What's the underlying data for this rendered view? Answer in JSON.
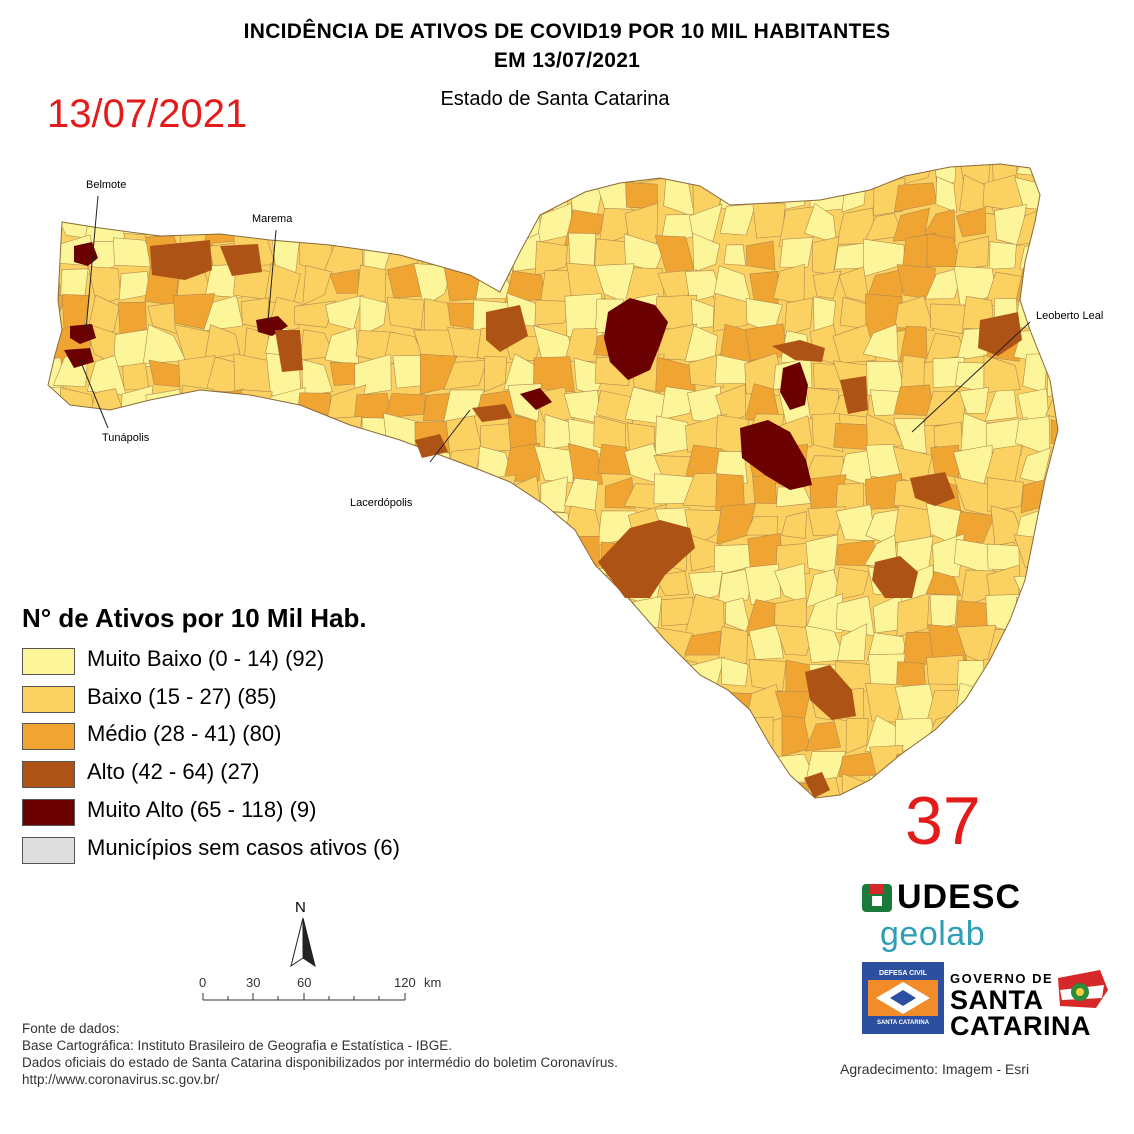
{
  "header": {
    "title_line1": "INCIDÊNCIA DE ATIVOS DE COVID19 POR 10 MIL HABITANTES",
    "title_line2": "EM 13/07/2021",
    "subtitle": "Estado de Santa Catarina",
    "date_stamp": "13/07/2021"
  },
  "big_number": "37",
  "colors": {
    "muito_baixo": "#fdf59a",
    "baixo": "#fbd161",
    "medio": "#f0a432",
    "alto": "#ad5316",
    "muito_alto": "#6a0000",
    "sem_casos": "#dedede",
    "accent_red": "#e31b1b"
  },
  "legend": {
    "title": "N° de Ativos por 10 Mil Hab.",
    "items": [
      {
        "label": "Muito Baixo (0 - 14) (92)",
        "color": "#fdf59a"
      },
      {
        "label": "Baixo (15 - 27) (85)",
        "color": "#fbd161"
      },
      {
        "label": "Médio (28 - 41) (80)",
        "color": "#f0a432"
      },
      {
        "label": "Alto (42 - 64) (27)",
        "color": "#ad5316"
      },
      {
        "label": "Muito Alto (65 - 118) (9)",
        "color": "#6a0000"
      },
      {
        "label": "Municípios sem casos ativos (6)",
        "color": "#dedede"
      }
    ]
  },
  "place_labels": {
    "belmote": "Belmote",
    "marema": "Marema",
    "tunapolis": "Tunápolis",
    "lacerdopolis": "Lacerdópolis",
    "leoberto_leal": "Leoberto Leal"
  },
  "north_arrow": {
    "label": "N",
    "icon": "north-arrow-icon"
  },
  "scale_bar": {
    "ticks": [
      "0",
      "30",
      "60",
      "120"
    ],
    "unit": "km"
  },
  "sources": {
    "heading": "Fonte de dados:",
    "line1": "Base Cartográfica: Instituto Brasileiro de Geografia e Estatística - IBGE.",
    "line2": "Dados oficiais do estado de Santa Catarina disponibilizados por intermédio do boletim Coronavírus.",
    "line3": "http://www.coronavirus.sc.gov.br/"
  },
  "credit": "Agradecimento: Imagem - Esri",
  "logos": {
    "udesc": "UDESC",
    "geolab": "geolab",
    "defesa_civil_top": "DEFESA CIVIL",
    "defesa_civil_bottom": "SANTA CATARINA",
    "governo_top": "GOVERNO DE",
    "governo_mid": "SANTA",
    "governo_bot": "CATARINA"
  }
}
